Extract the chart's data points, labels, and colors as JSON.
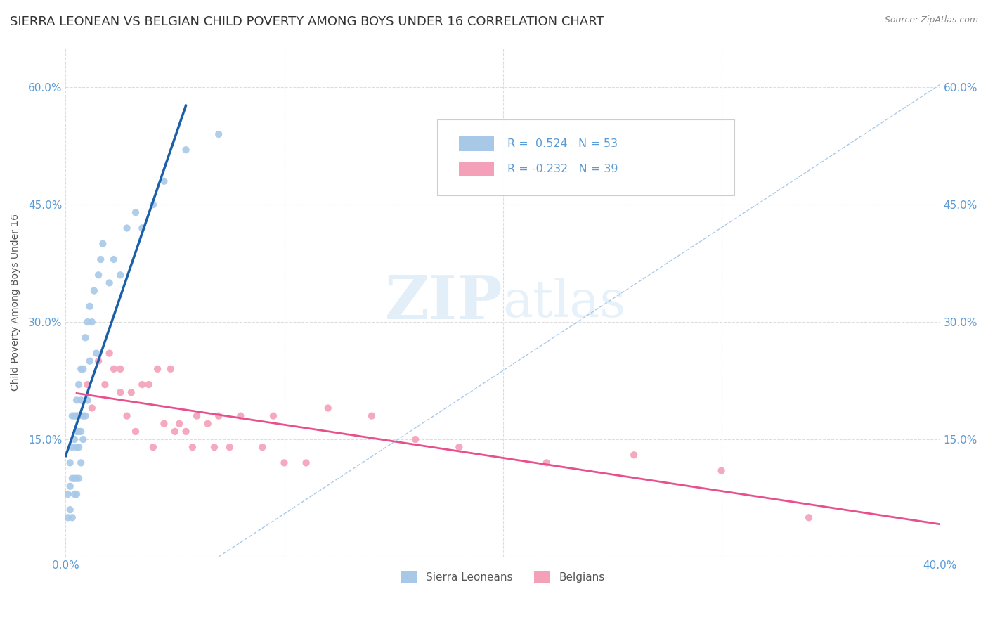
{
  "title": "SIERRA LEONEAN VS BELGIAN CHILD POVERTY AMONG BOYS UNDER 16 CORRELATION CHART",
  "source": "Source: ZipAtlas.com",
  "ylabel": "Child Poverty Among Boys Under 16",
  "watermark": "ZIPatlas",
  "xlim": [
    0.0,
    0.4
  ],
  "ylim": [
    0.0,
    0.65
  ],
  "x_ticks": [
    0.0,
    0.1,
    0.2,
    0.3,
    0.4
  ],
  "x_tick_labels": [
    "0.0%",
    "",
    "",
    "",
    "40.0%"
  ],
  "y_ticks": [
    0.0,
    0.15,
    0.3,
    0.45,
    0.6
  ],
  "y_tick_labels": [
    "",
    "15.0%",
    "30.0%",
    "45.0%",
    "60.0%"
  ],
  "sierra_color": "#A8C8E8",
  "belgian_color": "#F4A0B8",
  "sierra_line_color": "#1A5FA8",
  "belgian_line_color": "#E8508C",
  "dashed_line_color": "#A0C4E8",
  "R_sierra": 0.524,
  "N_sierra": 53,
  "R_belgian": -0.232,
  "N_belgian": 39,
  "sierra_points_x": [
    0.001,
    0.001,
    0.002,
    0.002,
    0.002,
    0.003,
    0.003,
    0.003,
    0.003,
    0.004,
    0.004,
    0.004,
    0.004,
    0.005,
    0.005,
    0.005,
    0.005,
    0.005,
    0.005,
    0.006,
    0.006,
    0.006,
    0.006,
    0.006,
    0.007,
    0.007,
    0.007,
    0.007,
    0.008,
    0.008,
    0.008,
    0.009,
    0.009,
    0.01,
    0.01,
    0.011,
    0.011,
    0.012,
    0.013,
    0.014,
    0.015,
    0.016,
    0.017,
    0.02,
    0.022,
    0.025,
    0.028,
    0.032,
    0.035,
    0.04,
    0.045,
    0.055,
    0.07
  ],
  "sierra_points_y": [
    0.05,
    0.08,
    0.06,
    0.09,
    0.12,
    0.05,
    0.1,
    0.14,
    0.18,
    0.08,
    0.1,
    0.15,
    0.18,
    0.08,
    0.1,
    0.14,
    0.16,
    0.18,
    0.2,
    0.1,
    0.14,
    0.16,
    0.18,
    0.22,
    0.12,
    0.16,
    0.2,
    0.24,
    0.15,
    0.18,
    0.24,
    0.18,
    0.28,
    0.2,
    0.3,
    0.25,
    0.32,
    0.3,
    0.34,
    0.26,
    0.36,
    0.38,
    0.4,
    0.35,
    0.38,
    0.36,
    0.42,
    0.44,
    0.42,
    0.45,
    0.48,
    0.52,
    0.54
  ],
  "belgian_points_x": [
    0.01,
    0.012,
    0.015,
    0.018,
    0.02,
    0.022,
    0.025,
    0.025,
    0.028,
    0.03,
    0.032,
    0.035,
    0.038,
    0.04,
    0.042,
    0.045,
    0.048,
    0.05,
    0.052,
    0.055,
    0.058,
    0.06,
    0.065,
    0.068,
    0.07,
    0.075,
    0.08,
    0.09,
    0.095,
    0.1,
    0.11,
    0.12,
    0.14,
    0.16,
    0.18,
    0.22,
    0.26,
    0.3,
    0.34
  ],
  "belgian_points_y": [
    0.22,
    0.19,
    0.25,
    0.22,
    0.26,
    0.24,
    0.21,
    0.24,
    0.18,
    0.21,
    0.16,
    0.22,
    0.22,
    0.14,
    0.24,
    0.17,
    0.24,
    0.16,
    0.17,
    0.16,
    0.14,
    0.18,
    0.17,
    0.14,
    0.18,
    0.14,
    0.18,
    0.14,
    0.18,
    0.12,
    0.12,
    0.19,
    0.18,
    0.15,
    0.14,
    0.12,
    0.13,
    0.11,
    0.05
  ],
  "grid_color": "#DDDDDD",
  "background_color": "#FFFFFF",
  "tick_color": "#5B9BD5",
  "title_fontsize": 13,
  "axis_label_fontsize": 10,
  "tick_fontsize": 11
}
